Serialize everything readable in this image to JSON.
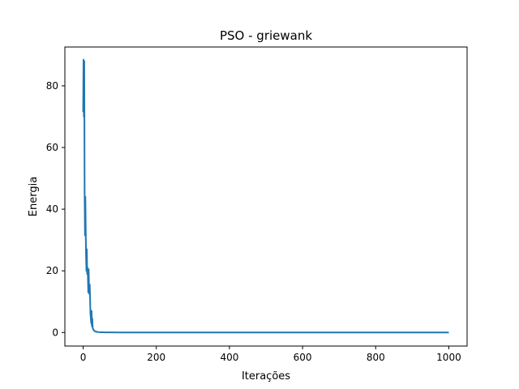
{
  "chart_data": {
    "type": "line",
    "title": "PSO - griewank",
    "xlabel": "Iterações",
    "ylabel": "Energia",
    "xlim": [
      -50,
      1050
    ],
    "ylim": [
      -4.4,
      92.6
    ],
    "xticks": [
      0,
      200,
      400,
      600,
      800,
      1000
    ],
    "yticks": [
      0,
      20,
      40,
      60,
      80
    ],
    "grid": false,
    "line_color": "#1f77b4",
    "series": [
      {
        "x": [
          0,
          1,
          2,
          3,
          4,
          5,
          6,
          7,
          8,
          9,
          10,
          11,
          12,
          13,
          14,
          15,
          16,
          17,
          18,
          19,
          20,
          21,
          22,
          23,
          24,
          25,
          26,
          27,
          28,
          29,
          30,
          32,
          35,
          38,
          40,
          45,
          50,
          60,
          70,
          80,
          100,
          150,
          200,
          300,
          400,
          500,
          600,
          700,
          800,
          900,
          1000
        ],
        "y": [
          71.5,
          88.5,
          70.0,
          88.0,
          45.0,
          31.5,
          44.0,
          33.0,
          24.5,
          20.0,
          27.0,
          19.0,
          21.0,
          18.0,
          13.0,
          20.5,
          15.0,
          12.5,
          15.5,
          10.5,
          6.0,
          4.5,
          3.0,
          7.0,
          2.0,
          4.5,
          1.5,
          1.2,
          1.0,
          0.8,
          0.6,
          0.4,
          0.3,
          0.2,
          0.15,
          0.1,
          0.08,
          0.05,
          0.04,
          0.03,
          0.02,
          0.02,
          0.02,
          0.02,
          0.02,
          0.02,
          0.02,
          0.02,
          0.02,
          0.02,
          0.02
        ]
      }
    ]
  }
}
